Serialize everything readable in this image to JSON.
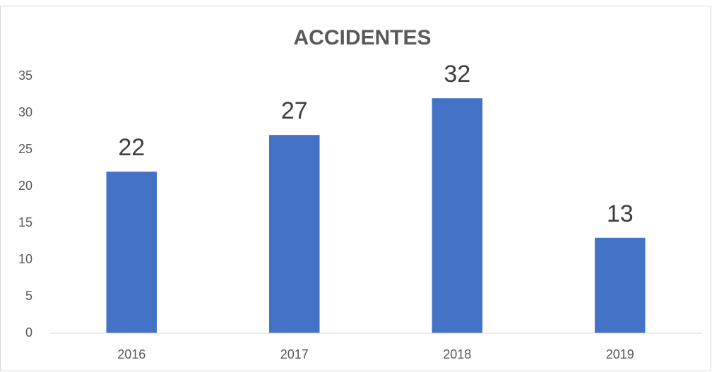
{
  "chart_data": {
    "type": "bar",
    "title": "ACCIDENTES",
    "categories": [
      "2016",
      "2017",
      "2018",
      "2019"
    ],
    "values": [
      22,
      27,
      32,
      13
    ],
    "color": "#4472c4",
    "ylim": [
      0,
      35
    ],
    "yticks": [
      0,
      5,
      10,
      15,
      20,
      25,
      30,
      35
    ],
    "grid": false,
    "data_labels": true
  }
}
